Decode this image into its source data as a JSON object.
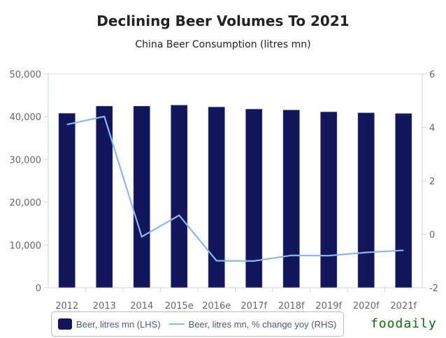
{
  "chart_data": {
    "type": "bar",
    "title": "Declining Beer Volumes To 2021",
    "subtitle": "China Beer Consumption (litres mn)",
    "categories": [
      "2012",
      "2013",
      "2014",
      "2015e",
      "2016e",
      "2017f",
      "2018f",
      "2019f",
      "2020f",
      "2021f"
    ],
    "series": [
      {
        "name": "Beer, litres mn (LHS)",
        "type": "bar",
        "axis": "left",
        "color": "#12175b",
        "values": [
          40850,
          42530,
          42530,
          42760,
          42320,
          41830,
          41620,
          41180,
          40960,
          40800
        ]
      },
      {
        "name": "Beer, litres mn, % change yoy (RHS)",
        "type": "line",
        "axis": "right",
        "color": "#8fb5ee",
        "values": [
          4.11,
          4.41,
          -0.09,
          0.71,
          -0.99,
          -1.0,
          -0.79,
          -0.8,
          -0.68,
          -0.6
        ]
      }
    ],
    "ylim_left": [
      0,
      50000
    ],
    "yticks_left": [
      "0",
      "10,000",
      "20,000",
      "30,000",
      "40,000",
      "50,000"
    ],
    "ylim_right": [
      -2,
      6
    ],
    "yticks_right": [
      "-2",
      "0",
      "2",
      "4",
      "6"
    ],
    "legend": "bottom"
  },
  "watermark": "foodaily"
}
